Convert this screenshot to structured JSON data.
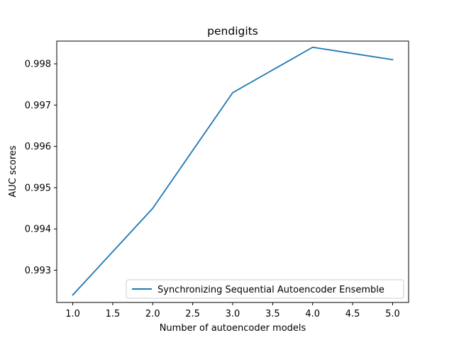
{
  "chart_data": {
    "type": "line",
    "title": "pendigits",
    "xlabel": "Number of autoencoder models",
    "ylabel": "AUC scores",
    "x": [
      1.0,
      2.0,
      3.0,
      4.0,
      5.0
    ],
    "series": [
      {
        "name": "Synchronizing Sequential Autoencoder Ensemble",
        "values": [
          0.9924,
          0.9945,
          0.9973,
          0.9984,
          0.9981
        ],
        "color": "#1f77b4"
      }
    ],
    "xlim": [
      0.8,
      5.2
    ],
    "ylim": [
      0.99222,
      0.99855
    ],
    "xticks": [
      1.0,
      1.5,
      2.0,
      2.5,
      3.0,
      3.5,
      4.0,
      4.5,
      5.0
    ],
    "xtick_labels": [
      "1.0",
      "1.5",
      "2.0",
      "2.5",
      "3.0",
      "3.5",
      "4.0",
      "4.5",
      "5.0"
    ],
    "yticks": [
      0.993,
      0.994,
      0.995,
      0.996,
      0.997,
      0.998
    ],
    "ytick_labels": [
      "0.993",
      "0.994",
      "0.995",
      "0.996",
      "0.997",
      "0.998"
    ],
    "grid": false,
    "legend_position": "lower-right"
  }
}
